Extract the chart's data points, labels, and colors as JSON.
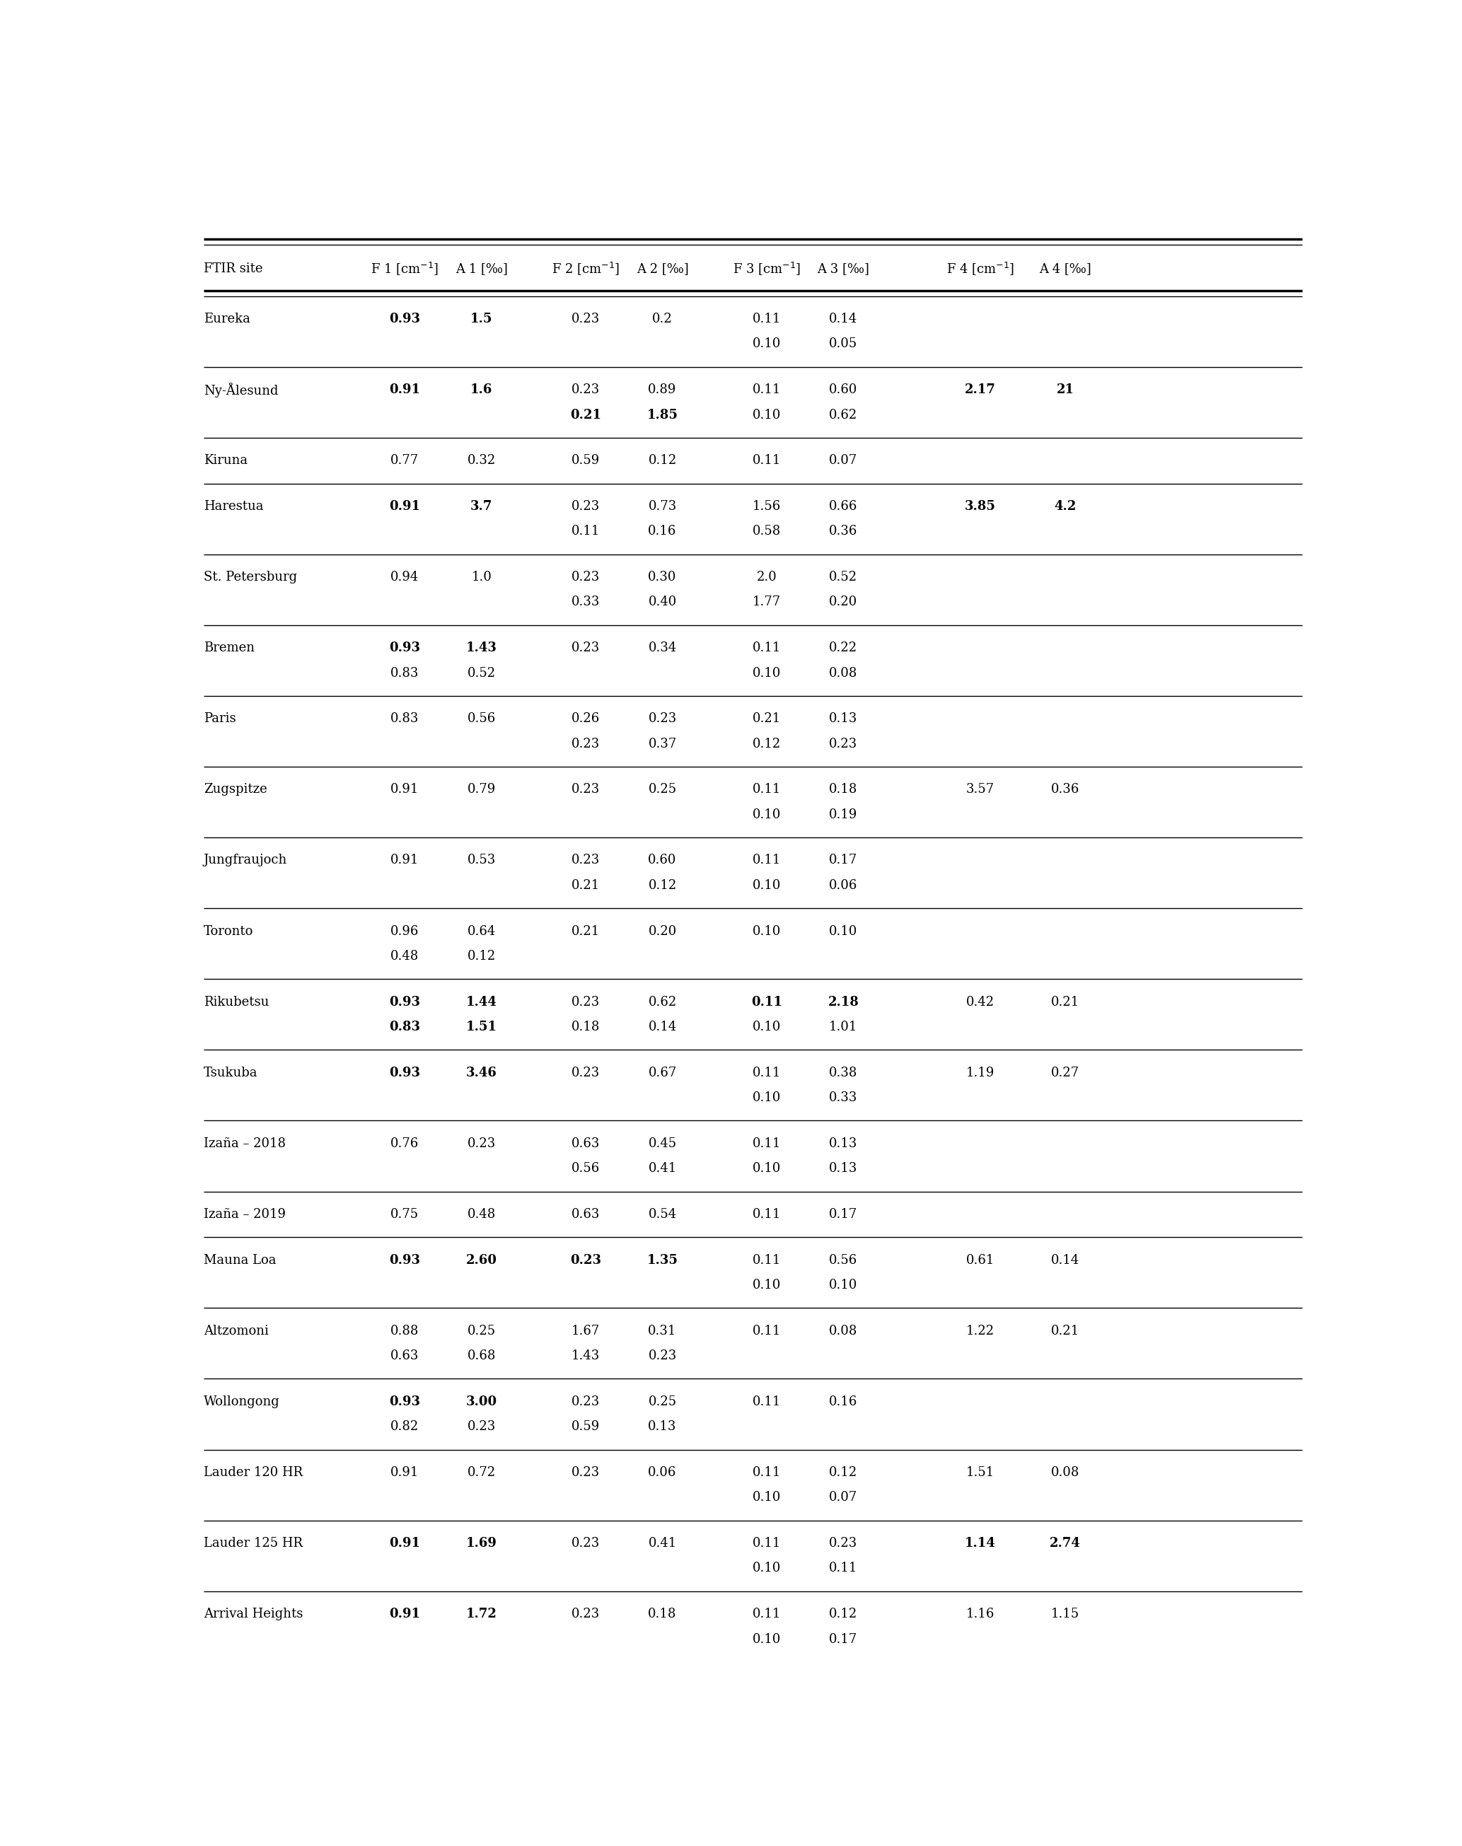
{
  "font_size": 13,
  "header_font_size": 13,
  "col_headers": [
    "FTIR site",
    "F 1 [cm⁻¹]",
    "A 1 [‰]",
    "F 2 [cm⁻¹]",
    "A 2 [‰]",
    "F 3 [cm⁻¹]",
    "A 3 [‰]",
    "F 4 [cm⁻¹]",
    "A 4 [‰]"
  ]
}
